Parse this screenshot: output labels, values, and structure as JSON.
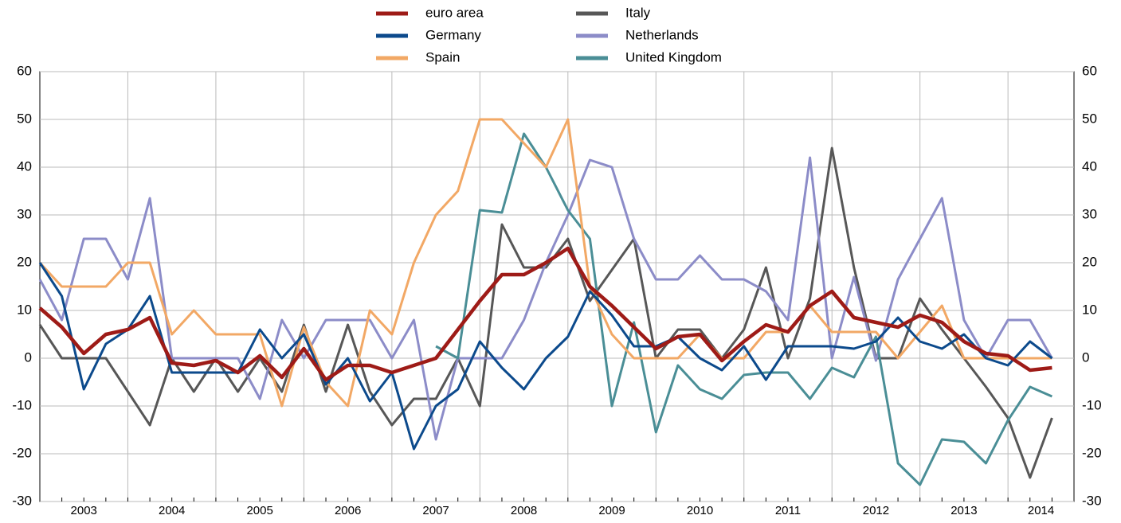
{
  "chart_data": {
    "type": "line",
    "x": [
      2003,
      2003.25,
      2003.5,
      2003.75,
      2004,
      2004.25,
      2004.5,
      2004.75,
      2005,
      2005.25,
      2005.5,
      2005.75,
      2006,
      2006.25,
      2006.5,
      2006.75,
      2007,
      2007.25,
      2007.5,
      2007.75,
      2008,
      2008.25,
      2008.5,
      2008.75,
      2009,
      2009.25,
      2009.5,
      2009.75,
      2010,
      2010.25,
      2010.5,
      2010.75,
      2011,
      2011.25,
      2011.5,
      2011.75,
      2012,
      2012.25,
      2012.5,
      2012.75,
      2013,
      2013.25,
      2013.5,
      2013.75,
      2014,
      2014.25,
      2014.5
    ],
    "xlim": [
      2003,
      2014.75
    ],
    "xticks": [
      {
        "value": 2003.5,
        "label": "2003"
      },
      {
        "value": 2004.5,
        "label": "2004"
      },
      {
        "value": 2005.5,
        "label": "2005"
      },
      {
        "value": 2006.5,
        "label": "2006"
      },
      {
        "value": 2007.5,
        "label": "2007"
      },
      {
        "value": 2008.5,
        "label": "2008"
      },
      {
        "value": 2009.5,
        "label": "2009"
      },
      {
        "value": 2010.5,
        "label": "2010"
      },
      {
        "value": 2011.5,
        "label": "2011"
      },
      {
        "value": 2012.5,
        "label": "2012"
      },
      {
        "value": 2013.5,
        "label": "2013"
      },
      {
        "value": 2014.375,
        "label": "2014"
      }
    ],
    "xgrid": [
      2004,
      2005,
      2006,
      2007,
      2008,
      2009,
      2010,
      2011,
      2012,
      2013,
      2014
    ],
    "ylim": [
      -30,
      60
    ],
    "yticks": [
      -30,
      -20,
      -10,
      0,
      10,
      20,
      30,
      40,
      50,
      60
    ],
    "grid": true,
    "series": [
      {
        "name": "euro area",
        "color": "#9e1b17",
        "width": 4.5,
        "values": [
          10.5,
          6.5,
          1,
          5,
          6,
          8.5,
          -1,
          -1.5,
          -0.5,
          -3,
          0.5,
          -4,
          2,
          -4.5,
          -1.5,
          -1.5,
          -3,
          -1.5,
          0,
          6,
          12,
          17.5,
          17.5,
          20,
          23,
          15,
          11,
          6.5,
          2,
          4.5,
          5,
          -0.5,
          3.5,
          7,
          5.5,
          11,
          14,
          8.5,
          7.5,
          6.5,
          9,
          7.5,
          3.5,
          1,
          0.5,
          -2.5,
          -2
        ]
      },
      {
        "name": "Germany",
        "color": "#0c4a8c",
        "width": 3,
        "values": [
          20,
          13,
          -6.5,
          3,
          6,
          13,
          -3,
          -3,
          -3,
          -3,
          6,
          0,
          5,
          -5.5,
          0,
          -9,
          -3,
          -19,
          -10,
          -6.5,
          3.5,
          -2,
          -6.5,
          0,
          4.5,
          14,
          9,
          2.5,
          2.5,
          4.5,
          0,
          -2.5,
          2.5,
          -4.5,
          2.5,
          2.5,
          2.5,
          2,
          3.5,
          8.5,
          3.5,
          2,
          5,
          0,
          -1.5,
          3.5,
          0
        ]
      },
      {
        "name": "Spain",
        "color": "#f2a865",
        "width": 3,
        "values": [
          20,
          15,
          15,
          15,
          20,
          20,
          5,
          10,
          5,
          5,
          5,
          -10,
          6.5,
          -5,
          -10,
          10,
          5,
          20,
          30,
          35,
          50,
          50,
          45,
          40,
          50,
          15,
          5,
          0,
          0,
          0,
          5,
          0,
          0,
          5.5,
          5.5,
          11,
          5.5,
          5.5,
          5.5,
          0,
          5.5,
          11,
          0,
          0,
          0,
          0,
          0
        ]
      },
      {
        "name": "Italy",
        "color": "#575757",
        "width": 3,
        "values": [
          7,
          0,
          0,
          0,
          -7,
          -14,
          0,
          -7,
          0,
          -7,
          0,
          -7,
          7,
          -7,
          7,
          -7,
          -14,
          -8.5,
          -8.5,
          0,
          -10,
          28,
          19,
          19,
          25,
          12,
          18.5,
          25,
          0,
          6,
          6,
          0,
          6,
          19,
          0,
          12.5,
          44,
          19,
          0,
          0,
          12.5,
          6,
          0,
          -6,
          -12.5,
          -25,
          -12.5
        ]
      },
      {
        "name": "Netherlands",
        "color": "#8c8cc8",
        "width": 3,
        "values": [
          16.5,
          8,
          25,
          25,
          16.5,
          33.5,
          0,
          0,
          0,
          0,
          -8.5,
          8,
          0,
          8,
          8,
          8,
          0,
          8,
          -17,
          0,
          0,
          0,
          8,
          20,
          30,
          41.5,
          40,
          25,
          16.5,
          16.5,
          21.5,
          16.5,
          16.5,
          14,
          8,
          42,
          0,
          17,
          -0.5,
          16.5,
          25,
          33.5,
          8,
          0,
          8,
          8,
          0
        ]
      },
      {
        "name": "United Kingdom",
        "color": "#4a8e96",
        "width": 3,
        "values": [
          null,
          null,
          null,
          null,
          null,
          null,
          null,
          null,
          null,
          null,
          null,
          null,
          null,
          null,
          null,
          null,
          null,
          null,
          2.5,
          0,
          31,
          30.5,
          47,
          40,
          31,
          25,
          -10,
          7.5,
          -15.5,
          -1.5,
          -6.5,
          -8.5,
          -3.5,
          -3,
          -3,
          -8.5,
          -2,
          -4,
          4.5,
          -22,
          -26.5,
          -17,
          -17.5,
          -22,
          -13,
          -6,
          -8
        ]
      }
    ]
  }
}
